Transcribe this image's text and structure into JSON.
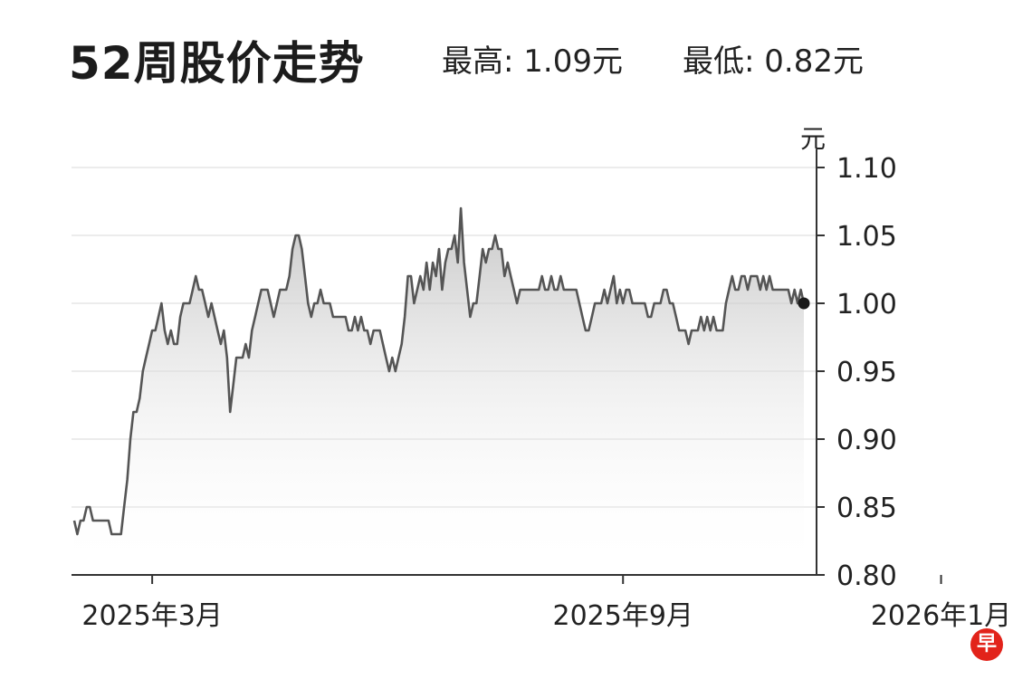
{
  "header": {
    "title": "52周股价走势",
    "high": "最高: 1.09元",
    "low": "最低: 0.82元"
  },
  "logo_text": "早",
  "colors": {
    "line": "#555555",
    "fill_top": "#c8c8c8",
    "grid": "#e6e6e6",
    "axis": "#333333",
    "endpoint": "#1a1a1a"
  },
  "chart_data": {
    "type": "area",
    "title": "52周股价走势",
    "unit_label": "元",
    "ylim": [
      0.8,
      1.1
    ],
    "y_ticks": [
      "0.80",
      "0.85",
      "0.90",
      "0.95",
      "1.00",
      "1.05",
      "1.10"
    ],
    "y_tick_values": [
      0.8,
      0.85,
      0.9,
      0.95,
      1.0,
      1.05,
      1.1
    ],
    "grid": true,
    "x_tick_labels": [
      "2025年3月",
      "2025年9月",
      "2026年1月"
    ],
    "x_tick_indices": [
      25,
      176,
      278
    ],
    "series": [
      {
        "values": [
          0.84,
          0.83,
          0.84,
          0.84,
          0.85,
          0.85,
          0.84,
          0.84,
          0.84,
          0.84,
          0.84,
          0.84,
          0.83,
          0.83,
          0.83,
          0.83,
          0.85,
          0.87,
          0.9,
          0.92,
          0.92,
          0.93,
          0.95,
          0.96,
          0.97,
          0.98,
          0.98,
          0.99,
          1.0,
          0.98,
          0.97,
          0.98,
          0.97,
          0.97,
          0.99,
          1.0,
          1.0,
          1.0,
          1.01,
          1.02,
          1.01,
          1.01,
          1.0,
          0.99,
          1.0,
          0.99,
          0.98,
          0.97,
          0.98,
          0.96,
          0.92,
          0.94,
          0.96,
          0.96,
          0.96,
          0.97,
          0.96,
          0.98,
          0.99,
          1.0,
          1.01,
          1.01,
          1.01,
          1.0,
          0.99,
          1.0,
          1.01,
          1.01,
          1.01,
          1.02,
          1.04,
          1.05,
          1.05,
          1.04,
          1.02,
          1.0,
          0.99,
          1.0,
          1.0,
          1.01,
          1.0,
          1.0,
          1.0,
          0.99,
          0.99,
          0.99,
          0.99,
          0.99,
          0.98,
          0.98,
          0.99,
          0.98,
          0.99,
          0.98,
          0.98,
          0.97,
          0.98,
          0.98,
          0.98,
          0.97,
          0.96,
          0.95,
          0.96,
          0.95,
          0.96,
          0.97,
          0.99,
          1.02,
          1.02,
          1.0,
          1.01,
          1.02,
          1.01,
          1.03,
          1.01,
          1.03,
          1.02,
          1.04,
          1.01,
          1.03,
          1.04,
          1.04,
          1.05,
          1.03,
          1.07,
          1.03,
          1.01,
          0.99,
          1.0,
          1.0,
          1.02,
          1.04,
          1.03,
          1.04,
          1.04,
          1.05,
          1.04,
          1.04,
          1.02,
          1.03,
          1.02,
          1.01,
          1.0,
          1.01,
          1.01,
          1.01,
          1.01,
          1.01,
          1.01,
          1.01,
          1.02,
          1.01,
          1.01,
          1.02,
          1.01,
          1.01,
          1.02,
          1.01,
          1.01,
          1.01,
          1.01,
          1.01,
          1.0,
          0.99,
          0.98,
          0.98,
          0.99,
          1.0,
          1.0,
          1.0,
          1.01,
          1.0,
          1.01,
          1.02,
          1.0,
          1.01,
          1.0,
          1.01,
          1.01,
          1.0,
          1.0,
          1.0,
          1.0,
          1.0,
          0.99,
          0.99,
          1.0,
          1.0,
          1.0,
          1.01,
          1.01,
          1.0,
          1.0,
          0.99,
          0.98,
          0.98,
          0.98,
          0.97,
          0.98,
          0.98,
          0.98,
          0.99,
          0.98,
          0.99,
          0.98,
          0.99,
          0.98,
          0.98,
          0.98,
          1.0,
          1.01,
          1.02,
          1.01,
          1.01,
          1.02,
          1.02,
          1.01,
          1.02,
          1.02,
          1.02,
          1.01,
          1.02,
          1.01,
          1.02,
          1.01,
          1.01,
          1.01,
          1.01,
          1.01,
          1.01,
          1.0,
          1.01,
          1.0,
          1.01,
          1.0
        ]
      }
    ]
  }
}
